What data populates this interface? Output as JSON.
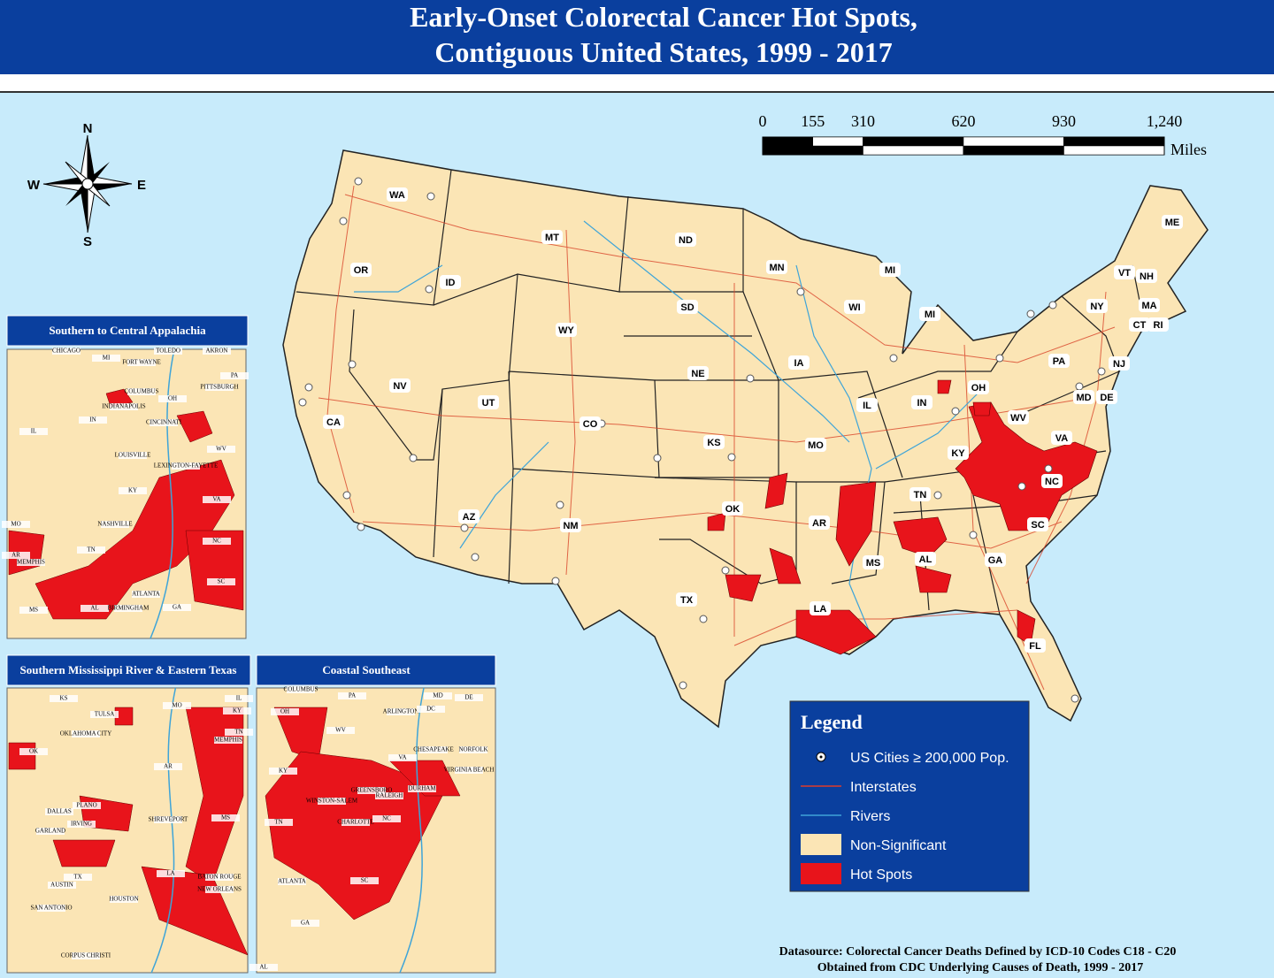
{
  "header": {
    "title_lines": [
      "Early-Onset Colorectal Cancer Hot Spots,",
      "Contiguous United States, 1999 - 2017"
    ]
  },
  "compass": {
    "n": "N",
    "e": "E",
    "s": "S",
    "w": "W"
  },
  "scale": {
    "ticks": [
      0,
      155,
      310,
      620,
      930,
      {
        "value": 1240,
        "label": "1,240"
      }
    ],
    "unit": "Miles"
  },
  "states": [
    "WA",
    "OR",
    "CA",
    "NV",
    "ID",
    "MT",
    "WY",
    "UT",
    "AZ",
    "CO",
    "NM",
    "ND",
    "SD",
    "NE",
    "KS",
    "OK",
    "TX",
    "MN",
    "IA",
    "MO",
    "AR",
    "LA",
    "WI",
    "IL",
    "MS",
    "MI",
    "MI",
    "IN",
    "OH",
    "KY",
    "TN",
    "AL",
    "GA",
    "FL",
    "SC",
    "NC",
    "VA",
    "WV",
    "PA",
    "NY",
    "VT",
    "NH",
    "ME",
    "MA",
    "CT",
    "RI",
    "NJ",
    "MD",
    "DE"
  ],
  "insets": [
    {
      "title": "Southern to Central Appalachia",
      "labels": [
        "CHICAGO",
        "MI",
        "TOLEDO",
        "AKRON",
        "FORT WAYNE",
        "PA",
        "COLUMBUS",
        "PITTSBURGH",
        "INDIANAPOLIS",
        "OH",
        "IN",
        "CINCINNATI",
        "IL",
        "WV",
        "LOUISVILLE",
        "LEXINGTON-FAYETTE",
        "KY",
        "VA",
        "NASHVILLE",
        "MO",
        "TN",
        "NC",
        "AR",
        "MEMPHIS",
        "SC",
        "ATLANTA",
        "MS",
        "AL",
        "BIRMINGHAM",
        "GA"
      ]
    },
    {
      "title": "Southern Mississippi River & Eastern Texas",
      "labels": [
        "KS",
        "MO",
        "IL",
        "TULSA",
        "KY",
        "OKLAHOMA CITY",
        "MEMPHIS",
        "TN",
        "OK",
        "AR",
        "PLANO",
        "DALLAS",
        "SHREVEPORT",
        "MS",
        "IRVING",
        "GARLAND",
        "TX",
        "LA",
        "BATON ROUGE",
        "AUSTIN",
        "NEW ORLEANS",
        "HOUSTON",
        "SAN ANTONIO",
        "CORPUS CHRISTI"
      ]
    },
    {
      "title": "Coastal Southeast",
      "labels": [
        "COLUMBUS",
        "PA",
        "MD",
        "DE",
        "OH",
        "ARLINGTON",
        "DC",
        "WV",
        "VA",
        "CHESAPEAKE",
        "NORFOLK",
        "VIRGINIA BEACH",
        "KY",
        "GREENSBORO",
        "DURHAM",
        "WINSTON-SALEM",
        "RALEIGH",
        "TN",
        "CHARLOTTE",
        "NC",
        "SC",
        "ATLANTA",
        "GA",
        "AL"
      ]
    }
  ],
  "legend": {
    "title": "Legend",
    "items": [
      "US Cities ≥ 200,000 Pop.",
      "Interstates",
      "Rivers",
      "Non-Significant",
      "Hot Spots"
    ]
  },
  "footer": {
    "lines": [
      "Datasource: Colorectal Cancer Deaths Defined by ICD-10 Codes C18 - C20",
      "Obtained from CDC Underlying Causes of Death, 1999 - 2017"
    ]
  }
}
